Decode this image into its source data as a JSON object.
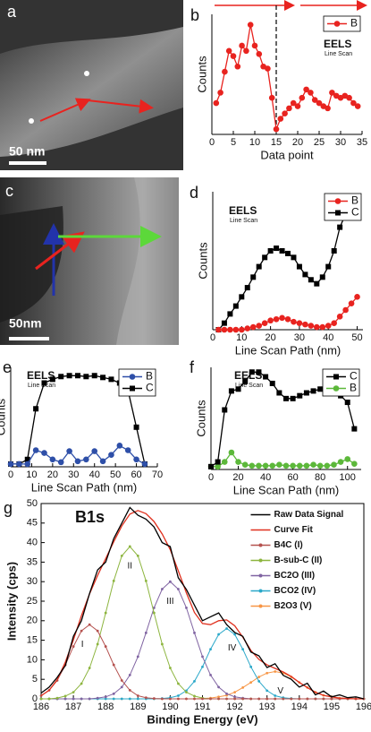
{
  "images": [
    {
      "label": "a",
      "scale_bar": "50 nm"
    },
    {
      "label": "c",
      "scale_bar": "50nm"
    }
  ],
  "chart_data": [
    {
      "type": "line",
      "label": "b",
      "annotation": {
        "text": "EELS",
        "subtext": "Line Scan"
      },
      "xlabel": "Data point",
      "ylabel": "Counts",
      "x": [
        1,
        2,
        3,
        4,
        5,
        6,
        7,
        8,
        9,
        10,
        11,
        12,
        13,
        14,
        15,
        16,
        17,
        18,
        19,
        20,
        21,
        22,
        23,
        24,
        25,
        26,
        27,
        28,
        29,
        30,
        31,
        32,
        33,
        34
      ],
      "xlim": [
        0,
        35
      ],
      "xticks": [
        0,
        5,
        10,
        15,
        20,
        25,
        30,
        35
      ],
      "ylim": [
        -5,
        110
      ],
      "vline": 15,
      "legend": "upper right",
      "series": [
        {
          "name": "B",
          "color": "#e8231f",
          "marker": "circle",
          "values": [
            25,
            35,
            55,
            75,
            70,
            60,
            80,
            75,
            100,
            80,
            72,
            60,
            58,
            30,
            0,
            10,
            15,
            20,
            25,
            22,
            30,
            38,
            35,
            28,
            25,
            22,
            20,
            35,
            32,
            30,
            32,
            30,
            25,
            22
          ]
        }
      ]
    },
    {
      "type": "line",
      "label": "d",
      "annotation": {
        "text": "EELS",
        "subtext": "Line Scan"
      },
      "xlabel": "Line Scan Path (nm)",
      "ylabel": "Counts",
      "x": [
        2,
        4,
        6,
        8,
        10,
        12,
        14,
        16,
        18,
        20,
        22,
        24,
        26,
        28,
        30,
        32,
        34,
        36,
        38,
        40,
        42,
        44,
        46,
        48,
        50
      ],
      "xlim": [
        0,
        52
      ],
      "xticks": [
        0,
        10,
        20,
        30,
        40,
        50
      ],
      "ylim": [
        0,
        105
      ],
      "legend": "upper right",
      "series": [
        {
          "name": "B",
          "color": "#e8231f",
          "marker": "circle",
          "values": [
            0,
            0,
            0,
            0,
            0,
            1,
            2,
            3,
            5,
            7,
            8,
            9,
            8,
            6,
            5,
            4,
            3,
            2,
            2,
            3,
            5,
            10,
            15,
            20,
            25
          ]
        },
        {
          "name": "C",
          "color": "#000000",
          "marker": "square",
          "values": [
            0,
            5,
            12,
            18,
            25,
            32,
            40,
            48,
            55,
            60,
            62,
            60,
            58,
            55,
            48,
            42,
            38,
            35,
            40,
            48,
            60,
            78,
            88,
            95,
            100
          ]
        }
      ]
    },
    {
      "type": "line",
      "label": "e",
      "annotation": {
        "text": "EELS",
        "subtext": "Line Scan"
      },
      "xlabel": "Line Scan Path (nm)",
      "ylabel": "Counts",
      "x": [
        0,
        4,
        8,
        12,
        16,
        20,
        24,
        28,
        32,
        36,
        40,
        44,
        48,
        52,
        56,
        60,
        64
      ],
      "xlim": [
        0,
        70
      ],
      "xticks": [
        0,
        10,
        20,
        30,
        40,
        50,
        60,
        70
      ],
      "ylim": [
        -3,
        105
      ],
      "legend": "upper right",
      "series": [
        {
          "name": "B",
          "color": "#2e4fa8",
          "marker": "circle",
          "values": [
            0,
            0,
            0,
            15,
            12,
            5,
            2,
            14,
            3,
            5,
            14,
            3,
            10,
            20,
            15,
            5,
            0
          ]
        },
        {
          "name": "C",
          "color": "#000000",
          "marker": "square",
          "values": [
            0,
            0,
            5,
            60,
            88,
            92,
            95,
            96,
            96,
            95,
            96,
            94,
            92,
            88,
            80,
            40,
            0
          ]
        }
      ]
    },
    {
      "type": "line",
      "label": "f",
      "annotation": {
        "text": "EELS",
        "subtext": "Line Scan"
      },
      "xlabel": "Line Scan Path (nm)",
      "ylabel": "Counts",
      "x": [
        0,
        5,
        10,
        15,
        20,
        25,
        30,
        35,
        40,
        45,
        50,
        55,
        60,
        65,
        70,
        75,
        80,
        85,
        90,
        95,
        100,
        105
      ],
      "xlim": [
        0,
        110
      ],
      "xticks": [
        0,
        20,
        40,
        60,
        80,
        100
      ],
      "ylim": [
        -3,
        105
      ],
      "legend": "upper right",
      "series": [
        {
          "name": "C",
          "color": "#000000",
          "marker": "square",
          "values": [
            0,
            5,
            60,
            80,
            82,
            90,
            100,
            100,
            95,
            88,
            78,
            72,
            72,
            75,
            78,
            80,
            82,
            82,
            80,
            75,
            68,
            40
          ]
        },
        {
          "name": "B",
          "color": "#5cb83a",
          "marker": "circle",
          "values": [
            0,
            0,
            5,
            15,
            5,
            2,
            1,
            1,
            1,
            1,
            2,
            1,
            1,
            1,
            1,
            2,
            1,
            1,
            2,
            5,
            8,
            3
          ]
        }
      ]
    },
    {
      "type": "line",
      "label": "g",
      "annotation": {
        "text": "B1s"
      },
      "xlabel": "Binding Energy (eV)",
      "ylabel": "Intensity (cps)",
      "frame": true,
      "x": [
        186,
        186.25,
        186.5,
        186.75,
        187,
        187.25,
        187.5,
        187.75,
        188,
        188.25,
        188.5,
        188.75,
        189,
        189.25,
        189.5,
        189.75,
        190,
        190.25,
        190.5,
        190.75,
        191,
        191.25,
        191.5,
        191.75,
        192,
        192.25,
        192.5,
        192.75,
        193,
        193.25,
        193.5,
        193.75,
        194,
        194.25,
        194.5,
        194.75,
        195,
        195.25,
        195.5,
        195.75,
        196
      ],
      "xlim": [
        186,
        196
      ],
      "xticks": [
        186,
        187,
        188,
        189,
        190,
        191,
        192,
        193,
        194,
        195,
        196
      ],
      "ylim": [
        0,
        50
      ],
      "yticks": [
        0,
        5,
        10,
        15,
        20,
        25,
        30,
        35,
        40,
        45,
        50
      ],
      "legend": "upper right",
      "legend_frame": false,
      "peak_labels": [
        "I",
        "II",
        "III",
        "IV",
        "V"
      ],
      "series": [
        {
          "name": "Raw Data Signal",
          "color": "#000000",
          "values": [
            1.5,
            3,
            5.5,
            8.5,
            16,
            20,
            27,
            33,
            35,
            41,
            45,
            49,
            47,
            46,
            44,
            40,
            39,
            31,
            28,
            24,
            20,
            21,
            22,
            19,
            17,
            16,
            12,
            11,
            8,
            9,
            6,
            5,
            3,
            4,
            1,
            2,
            0.5,
            1,
            0.3,
            0.5,
            0
          ]
        },
        {
          "name": "Curve Fit",
          "color": "#e0301e",
          "values": [
            0.8,
            2.2,
            4.9,
            9.4,
            15.1,
            21.3,
            26.9,
            31.6,
            35.9,
            40.2,
            44.3,
            47.3,
            48.2,
            47.4,
            45.4,
            42.2,
            38.2,
            32.8,
            27.1,
            22.1,
            19.3,
            19.0,
            20.0,
            20.2,
            18.7,
            15.8,
            12.4,
            10.1,
            8.7,
            7.8,
            6.9,
            5.7,
            4.2,
            2.9,
            1.7,
            0.9,
            0.5,
            0.2,
            0.1,
            0,
            0
          ]
        },
        {
          "name": "B4C (I)",
          "color": "#b5524f",
          "marker": "dot",
          "values": [
            0.8,
            2.2,
            4.7,
            8.7,
            13.4,
            17.4,
            19,
            17.4,
            13.4,
            8.7,
            4.7,
            2.2,
            0.8,
            0.3,
            0.1,
            0,
            0,
            0,
            0,
            0,
            0,
            0,
            0,
            0,
            0,
            0,
            0,
            0,
            0,
            0,
            0,
            0,
            0,
            0,
            0,
            0,
            0,
            0,
            0,
            0,
            0
          ]
        },
        {
          "name": "B-sub-C (II)",
          "color": "#8db53f",
          "marker": "dot",
          "values": [
            0,
            0,
            0.2,
            0.7,
            1.7,
            3.9,
            7.9,
            14.0,
            22.0,
            30.2,
            36.6,
            39,
            36.6,
            30.2,
            22.0,
            14.0,
            7.9,
            3.9,
            1.7,
            0.7,
            0.2,
            0,
            0,
            0,
            0,
            0,
            0,
            0,
            0,
            0,
            0,
            0,
            0,
            0,
            0,
            0,
            0,
            0,
            0,
            0,
            0
          ]
        },
        {
          "name": "BC2O (III)",
          "color": "#8064a2",
          "marker": "dot",
          "values": [
            0,
            0,
            0,
            0,
            0,
            0,
            0,
            0.2,
            0.5,
            1.3,
            3.0,
            6.1,
            10.8,
            16.9,
            23.3,
            28.1,
            30,
            28.1,
            23.3,
            16.9,
            10.8,
            6.1,
            3.0,
            1.3,
            0.5,
            0.2,
            0,
            0,
            0,
            0,
            0,
            0,
            0,
            0,
            0,
            0,
            0,
            0,
            0,
            0,
            0
          ]
        },
        {
          "name": "BCO2 (IV)",
          "color": "#2aa8c9",
          "marker": "dot",
          "values": [
            0,
            0,
            0,
            0,
            0,
            0,
            0,
            0,
            0,
            0,
            0,
            0,
            0,
            0,
            0,
            0.1,
            0.3,
            0.8,
            2.1,
            4.5,
            8.2,
            12.7,
            16.5,
            18,
            16.5,
            12.7,
            8.2,
            4.5,
            2.1,
            0.8,
            0.3,
            0.1,
            0,
            0,
            0,
            0,
            0,
            0,
            0,
            0,
            0
          ]
        },
        {
          "name": "B2O3 (V)",
          "color": "#f79646",
          "marker": "dot",
          "values": [
            0,
            0,
            0,
            0,
            0,
            0,
            0,
            0,
            0,
            0,
            0,
            0,
            0,
            0,
            0,
            0,
            0,
            0,
            0,
            0,
            0.1,
            0.2,
            0.5,
            0.9,
            1.7,
            2.9,
            4.2,
            5.6,
            6.6,
            7,
            6.6,
            5.6,
            4.2,
            2.9,
            1.7,
            0.9,
            0.5,
            0.2,
            0.1,
            0,
            0
          ]
        }
      ]
    }
  ]
}
